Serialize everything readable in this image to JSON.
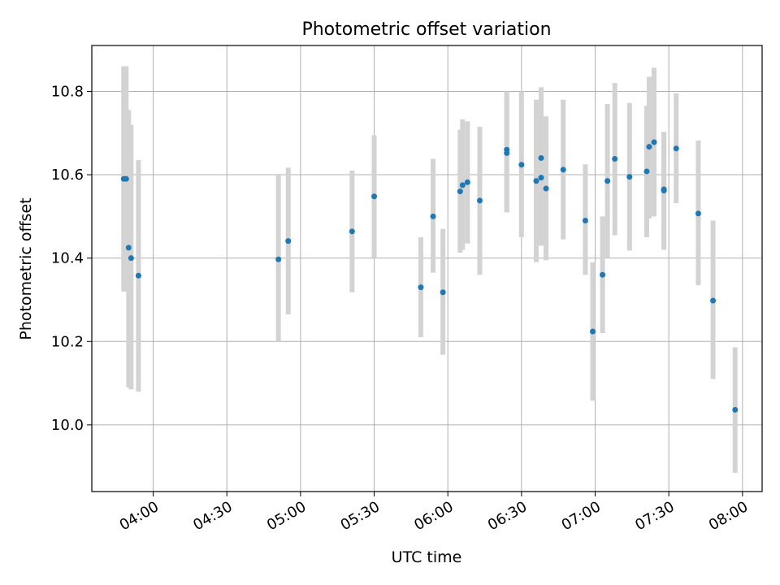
{
  "chart_data": {
    "type": "scatter",
    "title": "Photometric offset variation",
    "xlabel": "UTC time",
    "ylabel": "Photometric offset",
    "x_tick_labels": [
      "04:00",
      "04:30",
      "05:00",
      "05:30",
      "06:00",
      "06:30",
      "07:00",
      "07:30",
      "08:00"
    ],
    "y_tick_labels": [
      "10.0",
      "10.2",
      "10.4",
      "10.6",
      "10.8"
    ],
    "x_ticks": [
      "04:00",
      "04:30",
      "05:00",
      "05:30",
      "06:00",
      "06:30",
      "07:00",
      "07:30",
      "08:00"
    ],
    "y_ticks": [
      10.0,
      10.2,
      10.4,
      10.6,
      10.8
    ],
    "xlim": [
      "03:35",
      "08:08"
    ],
    "ylim": [
      9.84,
      10.91
    ],
    "grid": true,
    "colors": {
      "point": "#1f77b4",
      "errorbar": "#d3d3d3",
      "grid": "#b0b0b0"
    },
    "points": [
      {
        "x": "03:48",
        "y": 10.59,
        "err_low": 10.32,
        "err_high": 10.86
      },
      {
        "x": "03:49",
        "y": 10.59,
        "err_low": 10.32,
        "err_high": 10.86
      },
      {
        "x": "03:50",
        "y": 10.425,
        "err_low": 10.09,
        "err_high": 10.755
      },
      {
        "x": "03:51",
        "y": 10.4,
        "err_low": 10.085,
        "err_high": 10.72
      },
      {
        "x": "03:54",
        "y": 10.358,
        "err_low": 10.08,
        "err_high": 10.635
      },
      {
        "x": "04:51",
        "y": 10.397,
        "err_low": 10.2,
        "err_high": 10.6
      },
      {
        "x": "04:55",
        "y": 10.441,
        "err_low": 10.265,
        "err_high": 10.617
      },
      {
        "x": "05:21",
        "y": 10.464,
        "err_low": 10.318,
        "err_high": 10.61
      },
      {
        "x": "05:30",
        "y": 10.548,
        "err_low": 10.4,
        "err_high": 10.695
      },
      {
        "x": "05:49",
        "y": 10.33,
        "err_low": 10.21,
        "err_high": 10.45
      },
      {
        "x": "05:54",
        "y": 10.5,
        "err_low": 10.365,
        "err_high": 10.638
      },
      {
        "x": "05:58",
        "y": 10.318,
        "err_low": 10.168,
        "err_high": 10.47
      },
      {
        "x": "06:05",
        "y": 10.56,
        "err_low": 10.413,
        "err_high": 10.708
      },
      {
        "x": "06:06",
        "y": 10.575,
        "err_low": 10.42,
        "err_high": 10.733
      },
      {
        "x": "06:08",
        "y": 10.582,
        "err_low": 10.435,
        "err_high": 10.728
      },
      {
        "x": "06:13",
        "y": 10.538,
        "err_low": 10.36,
        "err_high": 10.715
      },
      {
        "x": "06:24",
        "y": 10.66,
        "err_low": 10.51,
        "err_high": 10.8
      },
      {
        "x": "06:24",
        "y": 10.652,
        "err_low": 10.51,
        "err_high": 10.8
      },
      {
        "x": "06:30",
        "y": 10.624,
        "err_low": 10.45,
        "err_high": 10.8
      },
      {
        "x": "06:36",
        "y": 10.585,
        "err_low": 10.39,
        "err_high": 10.78
      },
      {
        "x": "06:38",
        "y": 10.593,
        "err_low": 10.43,
        "err_high": 10.8
      },
      {
        "x": "06:38",
        "y": 10.64,
        "err_low": 10.43,
        "err_high": 10.81
      },
      {
        "x": "06:40",
        "y": 10.567,
        "err_low": 10.395,
        "err_high": 10.74
      },
      {
        "x": "06:47",
        "y": 10.612,
        "err_low": 10.445,
        "err_high": 10.78
      },
      {
        "x": "06:56",
        "y": 10.49,
        "err_low": 10.36,
        "err_high": 10.625
      },
      {
        "x": "06:59",
        "y": 10.224,
        "err_low": 10.058,
        "err_high": 10.39
      },
      {
        "x": "07:03",
        "y": 10.36,
        "err_low": 10.22,
        "err_high": 10.5
      },
      {
        "x": "07:05",
        "y": 10.585,
        "err_low": 10.4,
        "err_high": 10.77
      },
      {
        "x": "07:08",
        "y": 10.638,
        "err_low": 10.455,
        "err_high": 10.82
      },
      {
        "x": "07:14",
        "y": 10.595,
        "err_low": 10.418,
        "err_high": 10.772
      },
      {
        "x": "07:21",
        "y": 10.608,
        "err_low": 10.45,
        "err_high": 10.765
      },
      {
        "x": "07:22",
        "y": 10.667,
        "err_low": 10.495,
        "err_high": 10.835
      },
      {
        "x": "07:24",
        "y": 10.678,
        "err_low": 10.5,
        "err_high": 10.857
      },
      {
        "x": "07:28",
        "y": 10.565,
        "err_low": 10.42,
        "err_high": 10.703
      },
      {
        "x": "07:28",
        "y": 10.562,
        "err_low": 10.42,
        "err_high": 10.7
      },
      {
        "x": "07:33",
        "y": 10.663,
        "err_low": 10.532,
        "err_high": 10.795
      },
      {
        "x": "07:42",
        "y": 10.507,
        "err_low": 10.335,
        "err_high": 10.682
      },
      {
        "x": "07:48",
        "y": 10.298,
        "err_low": 10.11,
        "err_high": 10.49
      },
      {
        "x": "07:57",
        "y": 10.036,
        "err_low": 9.885,
        "err_high": 10.186
      }
    ]
  }
}
